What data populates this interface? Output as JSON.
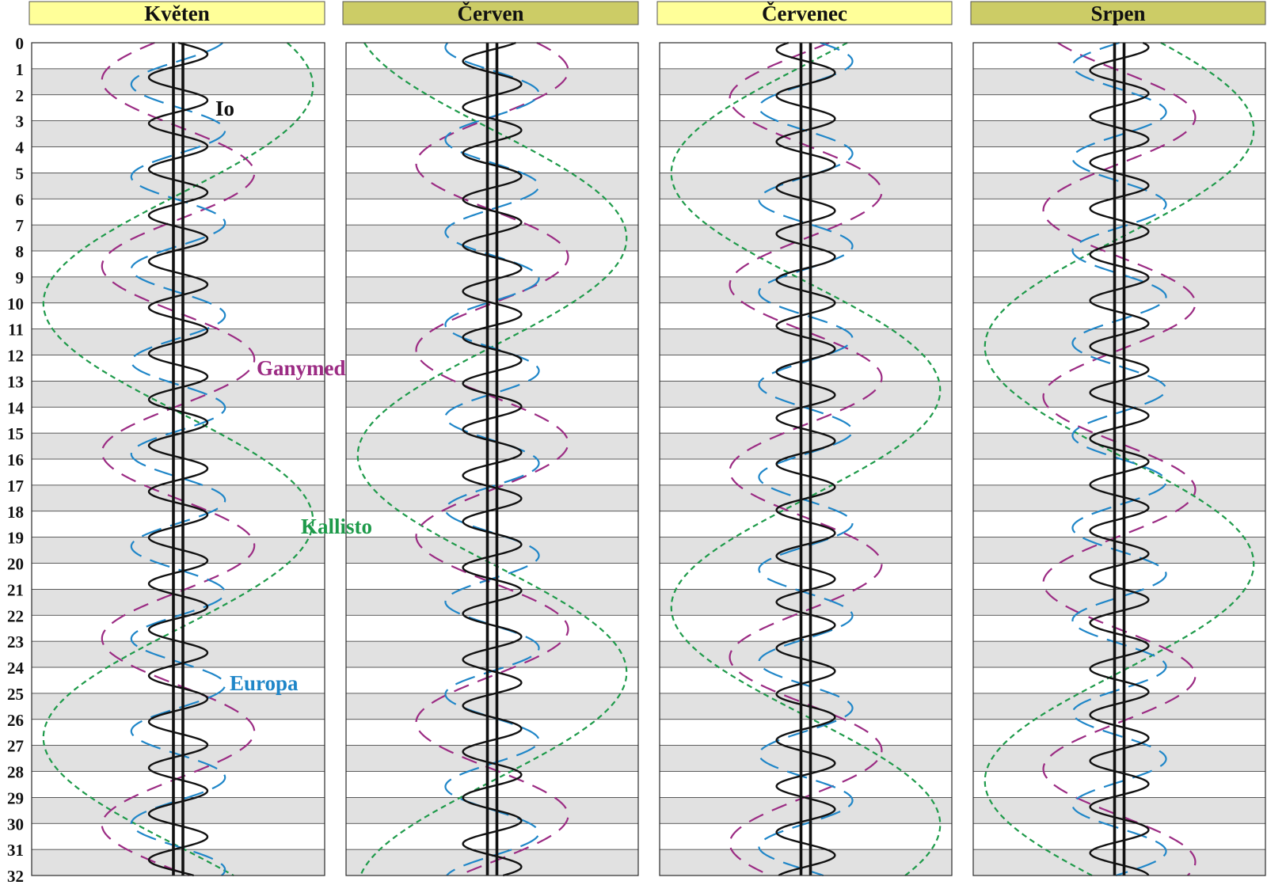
{
  "chart_data": {
    "type": "line",
    "title": "",
    "xlabel": "",
    "ylabel": "",
    "y_axis": {
      "label": "",
      "min": 0,
      "max": 32,
      "ticks": [
        0,
        1,
        2,
        3,
        4,
        5,
        6,
        7,
        8,
        9,
        10,
        11,
        12,
        13,
        14,
        15,
        16,
        17,
        18,
        19,
        20,
        21,
        22,
        23,
        24,
        25,
        26,
        27,
        28,
        29,
        30,
        31,
        32
      ]
    },
    "grid": true,
    "months": [
      {
        "name": "Květen",
        "header_color": "#ffff99",
        "io_phase": 0.0,
        "europa_phase": 0.3,
        "ganymed_phase": 0.55,
        "kallisto_phase": 0.15
      },
      {
        "name": "Červen",
        "header_color": "#cccc66",
        "io_phase": 0.35,
        "europa_phase": 0.7,
        "ganymed_phase": 0.1,
        "kallisto_phase": 0.8
      },
      {
        "name": "Červenec",
        "header_color": "#ffff99",
        "io_phase": 0.6,
        "europa_phase": 0.05,
        "ganymed_phase": 0.45,
        "kallisto_phase": 0.45
      },
      {
        "name": "Srpen",
        "header_color": "#cccc66",
        "io_phase": 0.15,
        "europa_phase": 0.5,
        "ganymed_phase": 0.85,
        "kallisto_phase": 0.05
      }
    ],
    "series": [
      {
        "name": "Io",
        "color": "#111111",
        "dash": "solid",
        "period_days": 1.769,
        "amplitude_rel": 0.1
      },
      {
        "name": "Europa",
        "color": "#1f86c8",
        "dash": "long-dash",
        "period_days": 3.551,
        "amplitude_rel": 0.16
      },
      {
        "name": "Ganymed",
        "color": "#9b2b83",
        "dash": "dash",
        "period_days": 7.155,
        "amplitude_rel": 0.26
      },
      {
        "name": "Kallisto",
        "color": "#1e9a4a",
        "dash": "short-dash",
        "period_days": 16.689,
        "amplitude_rel": 0.46
      }
    ],
    "labels": {
      "io": "Io",
      "europa": "Europa",
      "ganymed": "Ganymed",
      "kallisto": "Kallisto"
    }
  }
}
